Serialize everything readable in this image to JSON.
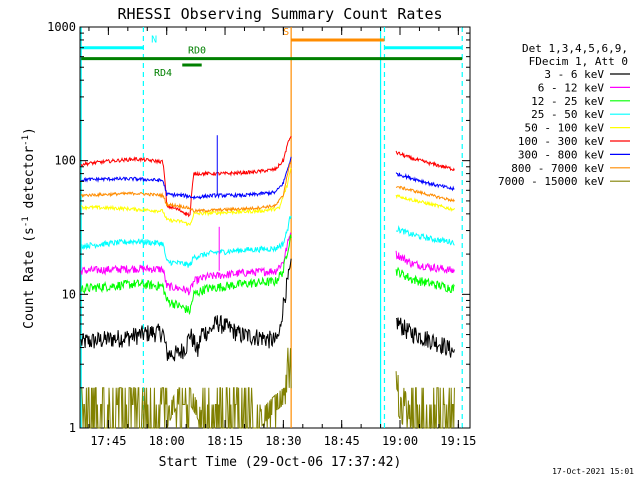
{
  "chart_data": {
    "type": "line",
    "title": "RHESSI Observing Summary Count Rates",
    "xlabel": "Start Time (29-Oct-06 17:37:42)",
    "ylabel_prefix": "Count Rate (s",
    "ylabel_mid": " detector",
    "ylabel_suffix": ")",
    "ylabel_sup": "-1",
    "y_scale": "log",
    "ylim": [
      1,
      1000
    ],
    "xlim": [
      "17:37:42",
      "19:18:00"
    ],
    "x_ticks": [
      "17:45",
      "18:00",
      "18:15",
      "18:30",
      "18:45",
      "19:00",
      "19:15"
    ],
    "y_ticks": [
      "1",
      "10",
      "100",
      "1000"
    ],
    "timestamp": "17-Oct-2021 15:01",
    "legend_placement": "right",
    "legend_header": [
      "Det 1,3,4,5,6,9,",
      "FDecim 1, Att 0"
    ],
    "series": [
      {
        "name": "3 - 6 keV",
        "color": "#000000",
        "noise": 0.16,
        "points": [
          [
            "17:38",
            4.4
          ],
          [
            "17:44",
            4.6
          ],
          [
            "17:50",
            4.8
          ],
          [
            "17:56",
            5.2
          ],
          [
            "17:59",
            5.2
          ],
          [
            "18:00",
            3.6
          ],
          [
            "18:03",
            3.6
          ],
          [
            "18:05",
            4.1
          ],
          [
            "18:06",
            5.1
          ],
          [
            "18:08",
            3.7
          ],
          [
            "18:09",
            5.2
          ],
          [
            "18:11",
            5.3
          ],
          [
            "18:13",
            6.2
          ],
          [
            "18:16",
            5.6
          ],
          [
            "18:19",
            5.0
          ],
          [
            "18:24",
            4.8
          ],
          [
            "18:28",
            4.5
          ],
          [
            "18:29",
            5.0
          ],
          [
            "18:31",
            12.0
          ],
          [
            "18:32",
            16.0
          ],
          [
            "18:59",
            6.3
          ],
          [
            "19:02",
            5.3
          ],
          [
            "19:06",
            4.8
          ],
          [
            "19:11",
            4.2
          ],
          [
            "19:14",
            3.7
          ]
        ]
      },
      {
        "name": "6 - 12 keV",
        "color": "#ff00ff",
        "noise": 0.07,
        "points": [
          [
            "17:38",
            15.0
          ],
          [
            "17:45",
            15.3
          ],
          [
            "17:52",
            15.6
          ],
          [
            "17:59",
            15.4
          ],
          [
            "18:00",
            11.5
          ],
          [
            "18:04",
            11.0
          ],
          [
            "18:06",
            10.5
          ],
          [
            "18:07",
            12.5
          ],
          [
            "18:10",
            13.5
          ],
          [
            "18:20",
            14.5
          ],
          [
            "18:28",
            15.0
          ],
          [
            "18:30",
            17.5
          ],
          [
            "18:31",
            23.0
          ],
          [
            "18:32",
            30.0
          ],
          [
            "18:59",
            20.0
          ],
          [
            "19:03",
            17.0
          ],
          [
            "19:08",
            16.0
          ],
          [
            "19:14",
            15.0
          ]
        ]
      },
      {
        "name": "12 - 25 keV",
        "color": "#00ff00",
        "noise": 0.08,
        "points": [
          [
            "17:38",
            11.0
          ],
          [
            "17:45",
            11.5
          ],
          [
            "17:52",
            12.0
          ],
          [
            "17:59",
            11.5
          ],
          [
            "18:00",
            9.0
          ],
          [
            "18:04",
            8.0
          ],
          [
            "18:06",
            7.5
          ],
          [
            "18:07",
            10.0
          ],
          [
            "18:10",
            11.0
          ],
          [
            "18:20",
            12.0
          ],
          [
            "18:28",
            12.5
          ],
          [
            "18:30",
            15.0
          ],
          [
            "18:31",
            21.0
          ],
          [
            "18:32",
            28.0
          ],
          [
            "18:59",
            15.0
          ],
          [
            "19:03",
            13.0
          ],
          [
            "19:08",
            12.0
          ],
          [
            "19:14",
            11.0
          ]
        ]
      },
      {
        "name": "25 - 50 keV",
        "color": "#00ffff",
        "noise": 0.05,
        "points": [
          [
            "17:38",
            23.0
          ],
          [
            "17:45",
            24.0
          ],
          [
            "17:52",
            25.0
          ],
          [
            "17:59",
            24.0
          ],
          [
            "18:00",
            17.5
          ],
          [
            "18:04",
            17.0
          ],
          [
            "18:06",
            16.5
          ],
          [
            "18:07",
            19.0
          ],
          [
            "18:12",
            20.5
          ],
          [
            "18:20",
            21.5
          ],
          [
            "18:28",
            22.0
          ],
          [
            "18:30",
            24.0
          ],
          [
            "18:31",
            30.0
          ],
          [
            "18:32",
            40.0
          ],
          [
            "18:59",
            31.0
          ],
          [
            "19:03",
            28.0
          ],
          [
            "19:08",
            26.0
          ],
          [
            "19:14",
            24.5
          ]
        ]
      },
      {
        "name": "50 - 100 keV",
        "color": "#ffff00",
        "noise": 0.03,
        "points": [
          [
            "17:38",
            45.0
          ],
          [
            "17:48",
            44.0
          ],
          [
            "17:59",
            42.0
          ],
          [
            "18:00",
            36.0
          ],
          [
            "18:04",
            35.0
          ],
          [
            "18:06",
            33.0
          ],
          [
            "18:07",
            40.0
          ],
          [
            "18:15",
            41.0
          ],
          [
            "18:24",
            42.0
          ],
          [
            "18:29",
            44.0
          ],
          [
            "18:31",
            65.0
          ],
          [
            "18:32",
            90.0
          ],
          [
            "18:59",
            55.0
          ],
          [
            "19:03",
            51.0
          ],
          [
            "19:08",
            47.0
          ],
          [
            "19:14",
            43.0
          ]
        ]
      },
      {
        "name": "100 - 300 keV",
        "color": "#ff0000",
        "noise": 0.03,
        "points": [
          [
            "17:38",
            94.0
          ],
          [
            "17:45",
            99.0
          ],
          [
            "17:52",
            103.0
          ],
          [
            "17:59",
            98.0
          ],
          [
            "18:00",
            46.0
          ],
          [
            "18:03",
            43.0
          ],
          [
            "18:06",
            39.0
          ],
          [
            "18:07",
            80.0
          ],
          [
            "18:15",
            80.0
          ],
          [
            "18:22",
            82.0
          ],
          [
            "18:28",
            86.0
          ],
          [
            "18:30",
            100.0
          ],
          [
            "18:31",
            130.0
          ],
          [
            "18:32",
            155.0
          ],
          [
            "18:59",
            115.0
          ],
          [
            "19:03",
            104.0
          ],
          [
            "19:08",
            95.0
          ],
          [
            "19:14",
            86.0
          ]
        ]
      },
      {
        "name": "300 - 800 keV",
        "color": "#0000ff",
        "noise": 0.03,
        "points": [
          [
            "17:38",
            72.0
          ],
          [
            "17:45",
            73.0
          ],
          [
            "17:52",
            73.0
          ],
          [
            "17:59",
            71.0
          ],
          [
            "18:00",
            56.0
          ],
          [
            "18:04",
            55.0
          ],
          [
            "18:06",
            54.0
          ],
          [
            "18:07",
            53.0
          ],
          [
            "18:12",
            55.0
          ],
          [
            "18:20",
            55.0
          ],
          [
            "18:28",
            58.0
          ],
          [
            "18:30",
            68.0
          ],
          [
            "18:31",
            85.0
          ],
          [
            "18:32",
            105.0
          ],
          [
            "18:59",
            80.0
          ],
          [
            "19:03",
            74.0
          ],
          [
            "19:08",
            67.0
          ],
          [
            "19:14",
            61.0
          ]
        ]
      },
      {
        "name": "800 - 7000 keV",
        "color": "#ff8c00",
        "noise": 0.025,
        "points": [
          [
            "17:38",
            55.0
          ],
          [
            "17:45",
            56.0
          ],
          [
            "17:52",
            57.0
          ],
          [
            "17:59",
            55.0
          ],
          [
            "18:00",
            47.0
          ],
          [
            "18:03",
            46.0
          ],
          [
            "18:06",
            44.0
          ],
          [
            "18:07",
            42.0
          ],
          [
            "18:15",
            43.0
          ],
          [
            "18:22",
            44.0
          ],
          [
            "18:28",
            46.0
          ],
          [
            "18:30",
            55.0
          ],
          [
            "18:31",
            78.0
          ],
          [
            "18:32",
            100.0
          ],
          [
            "18:59",
            64.0
          ],
          [
            "19:03",
            60.0
          ],
          [
            "19:08",
            55.0
          ],
          [
            "19:14",
            50.0
          ]
        ]
      },
      {
        "name": "7000 - 15000 keV",
        "color": "#808000",
        "noise": 0,
        "points": [
          [
            "17:38",
            1.0
          ],
          [
            "17:59",
            1.0
          ],
          [
            "18:00",
            1.0
          ],
          [
            "18:03",
            1.5
          ],
          [
            "18:06",
            1.5
          ],
          [
            "18:09",
            1.0
          ],
          [
            "18:13",
            1.0
          ],
          [
            "18:18",
            1.0
          ],
          [
            "18:24",
            1.0
          ],
          [
            "18:30",
            1.5
          ],
          [
            "18:31",
            3.0
          ],
          [
            "18:59",
            2.0
          ],
          [
            "19:03",
            1.0
          ],
          [
            "19:14",
            1.0
          ]
        ]
      }
    ],
    "gaps": [
      [
        "18:32",
        "18:59"
      ]
    ],
    "vertical_markers": [
      {
        "time": "17:38",
        "color": "#00ffff",
        "style": "solid"
      },
      {
        "time": "17:54",
        "color": "#00ffff",
        "style": "dashed"
      },
      {
        "time": "18:32",
        "color": "#ff8c00",
        "style": "solid"
      },
      {
        "time": "18:55",
        "color": "#00ffff",
        "style": "solid"
      },
      {
        "time": "18:56",
        "color": "#00ffff",
        "style": "dashed"
      },
      {
        "time": "19:16",
        "color": "#00ffff",
        "style": "dashed"
      }
    ],
    "state_bars": [
      {
        "label": "N",
        "color": "#00ffff",
        "start": "17:38",
        "end": "17:54",
        "y": 700
      },
      {
        "label": "",
        "color": "#00ffff",
        "start": "18:56",
        "end": "19:16",
        "y": 700
      },
      {
        "label": "S",
        "color": "#ff8c00",
        "start": "18:32",
        "end": "18:56",
        "y": 800
      },
      {
        "label": "RD0",
        "color": "#008000",
        "start": "17:38",
        "end": "19:16",
        "y": 580
      },
      {
        "label": "RD4",
        "color": "#008000",
        "start": "18:04",
        "end": "18:09",
        "y": 520
      }
    ]
  }
}
